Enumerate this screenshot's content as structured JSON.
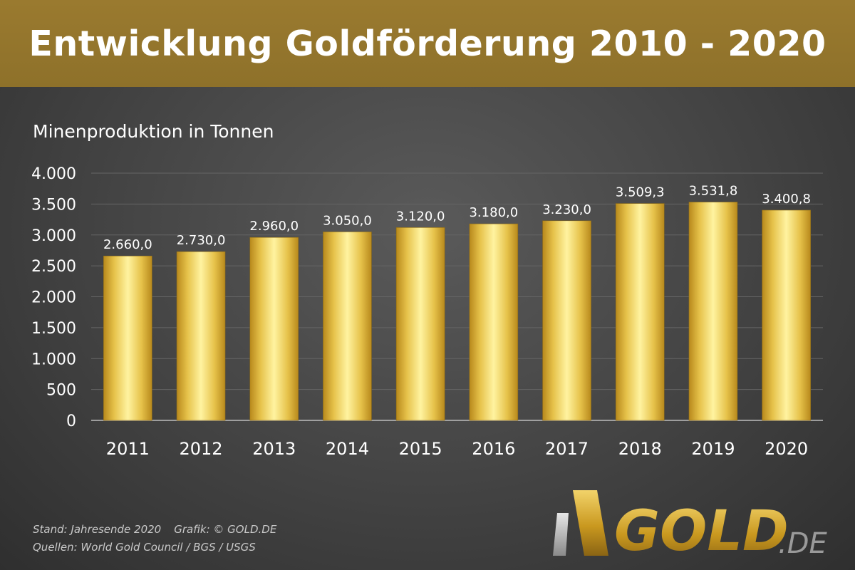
{
  "header": {
    "title": "Entwicklung Goldförderung 2010 - 2020"
  },
  "chart_data": {
    "type": "bar",
    "title": "Entwicklung Goldförderung 2010 - 2020",
    "subtitle": "Minenproduktion in Tonnen",
    "xlabel": "",
    "ylabel": "",
    "categories": [
      "2011",
      "2012",
      "2013",
      "2014",
      "2015",
      "2016",
      "2017",
      "2018",
      "2019",
      "2020"
    ],
    "values": [
      2660.0,
      2730.0,
      2960.0,
      3050.0,
      3120.0,
      3180.0,
      3230.0,
      3509.3,
      3531.8,
      3400.8
    ],
    "value_labels": [
      "2.660,0",
      "2.730,0",
      "2.960,0",
      "3.050,0",
      "3.120,0",
      "3.180,0",
      "3.230,0",
      "3.509,3",
      "3.531,8",
      "3.400,8"
    ],
    "ylim": [
      0,
      4000
    ],
    "yticks": [
      0,
      500,
      1000,
      1500,
      2000,
      2500,
      3000,
      3500,
      4000
    ],
    "ytick_labels": [
      "0",
      "500",
      "1.000",
      "1.500",
      "2.000",
      "2.500",
      "3.000",
      "3.500",
      "4.000"
    ],
    "grid": true,
    "legend": "none",
    "colors": {
      "bar_light": "#fff3a0",
      "bar_mid": "#e6c24a",
      "bar_dark": "#b8891c",
      "text": "#ffffff",
      "grid": "#666666"
    }
  },
  "footer": {
    "stand": "Stand: Jahresende 2020",
    "grafik": "Grafik: © GOLD.DE",
    "quellen": "Quellen: World Gold Council / BGS / USGS"
  },
  "logo": {
    "text_main": "GOLD",
    "text_suffix": ".DE"
  }
}
